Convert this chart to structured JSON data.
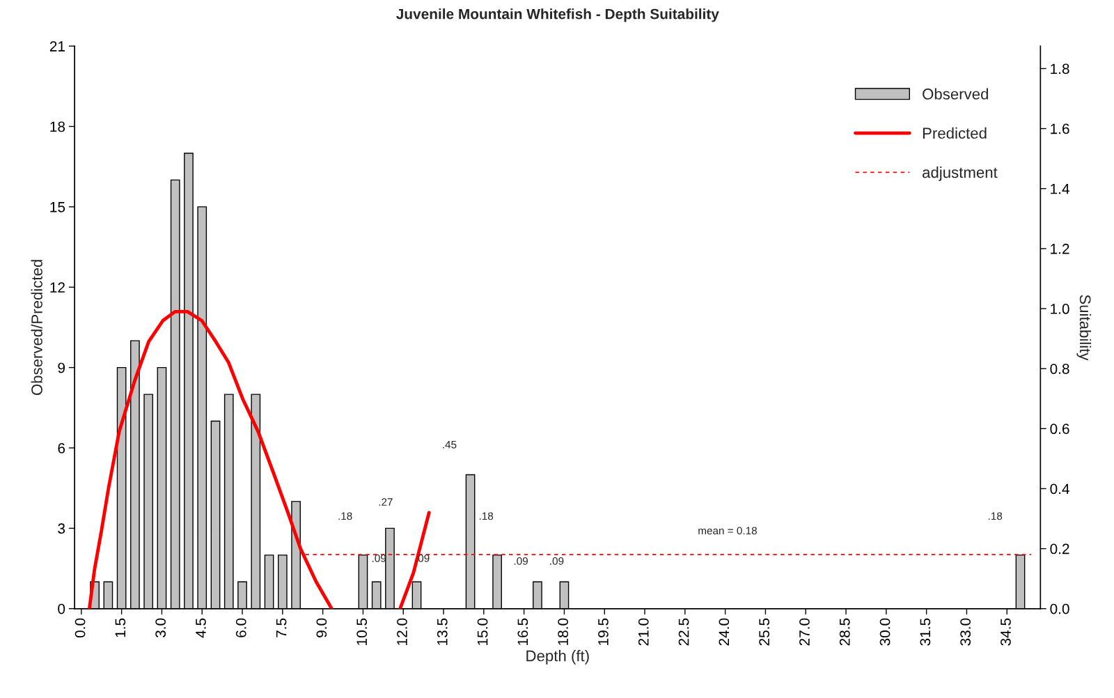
{
  "chart_data": {
    "type": "bar",
    "title": "Juvenile Mountain Whitefish - Depth Suitability",
    "xlabel": "Depth (ft)",
    "ylabel": "Observed/Predicted",
    "y2label": "Suitability",
    "xlim": [
      -0.25,
      35.75
    ],
    "xticks": [
      {
        "value": 0,
        "label": "0.0"
      },
      1.5,
      {
        "value": 3,
        "label": "3.0"
      },
      4.5,
      {
        "value": 6,
        "label": "6.0"
      },
      7.5,
      {
        "value": 9,
        "label": "9.0"
      },
      10.5,
      {
        "value": 12,
        "label": "12.0"
      },
      13.5,
      {
        "value": 15,
        "label": "15.0"
      },
      16.5,
      {
        "value": 18,
        "label": "18.0"
      },
      19.5,
      {
        "value": 21,
        "label": "21.0"
      },
      22.5,
      {
        "value": 24,
        "label": "24.0"
      },
      25.5,
      {
        "value": 27,
        "label": "27.0"
      },
      28.5,
      {
        "value": 30,
        "label": "30.0"
      },
      31.5,
      {
        "value": 33,
        "label": "33.0"
      },
      34.5
    ],
    "ylim": [
      0,
      21
    ],
    "yticks": [
      0,
      3,
      6,
      9,
      12,
      15,
      18,
      21
    ],
    "y2lim": [
      0,
      1.875
    ],
    "y2ticks": [
      {
        "value": 0,
        "label": "0.0"
      },
      0.2,
      0.4,
      0.6,
      0.8,
      {
        "value": 1,
        "label": "1.0"
      },
      1.2,
      1.4,
      1.6,
      1.8
    ],
    "grid": false,
    "legend": "top right",
    "series": [
      {
        "name": "Observed",
        "color": "#c0c0c0",
        "x": [
          0.5,
          1.0,
          1.5,
          2.0,
          2.5,
          3.0,
          3.5,
          4.0,
          4.5,
          5.0,
          5.5,
          6.0,
          6.5,
          7.0,
          7.5,
          8.0,
          10.5,
          11.0,
          11.5,
          12.5,
          14.5,
          15.5,
          17.0,
          18.0,
          35.0
        ],
        "values": [
          1,
          1,
          9,
          10,
          8,
          9,
          16,
          17,
          15,
          7,
          8,
          1,
          8,
          2,
          2,
          4,
          2,
          1,
          3,
          1,
          5,
          2,
          1,
          1,
          2
        ]
      },
      {
        "name": "Predicted",
        "type": "line",
        "axis": "y2",
        "color": "#ff0000",
        "line_style": "solid",
        "x": [
          0.3,
          0.49,
          0.75,
          1.01,
          1.41,
          1.99,
          2.51,
          3.04,
          3.49,
          3.96,
          4.49,
          5.01,
          5.49,
          6.01,
          6.59,
          7.17,
          7.7,
          8.17,
          8.75,
          9.33,
          10.5,
          11.88,
          12.38,
          12.96
        ],
        "values": [
          0,
          0.13,
          0.26,
          0.4,
          0.59,
          0.76,
          0.89,
          0.96,
          0.99,
          0.99,
          0.96,
          0.89,
          0.82,
          0.7,
          0.59,
          0.45,
          0.32,
          0.2,
          0.09,
          0,
          null,
          0,
          0.12,
          0.32
        ]
      },
      {
        "name": "adjustment",
        "type": "line",
        "axis": "y2",
        "color": "#ff0000",
        "line_style": "dashed",
        "x": [
          8.35,
          35.4
        ],
        "values": [
          0.18,
          0.18
        ]
      }
    ],
    "annotations": [
      ".18",
      ".27",
      ".09",
      ".09",
      ".45",
      ".18",
      ".09",
      ".09",
      "mean = 0.18",
      ".18"
    ]
  }
}
